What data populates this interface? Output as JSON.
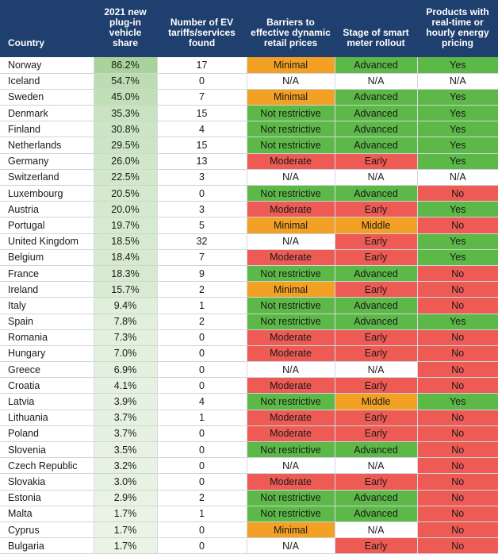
{
  "colors": {
    "header_bg": "#1f3f6e",
    "Minimal": "#f2a125",
    "Not restrictive": "#5cb947",
    "Moderate": "#ee5b55",
    "Advanced": "#5cb947",
    "Early": "#ee5b55",
    "Middle": "#f2a125",
    "Yes": "#5cb947",
    "No": "#ee5b55",
    "N/A": "#ffffff",
    "share_scale_high": "#a9d39b",
    "share_scale_low": "#eef6ea"
  },
  "chart_data": {
    "type": "table",
    "columns": [
      "Country",
      "2021 new plug-in vehicle share",
      "Number of EV tariffs/services found",
      "Barriers to effective dynamic retail prices",
      "Stage of smart meter rollout",
      "Products with real-time or hourly energy pricing"
    ],
    "rows": [
      {
        "country": "Norway",
        "share": "86.2%",
        "share_value": 86.2,
        "tariffs": "17",
        "barriers": "Minimal",
        "stage": "Advanced",
        "products": "Yes"
      },
      {
        "country": "Iceland",
        "share": "54.7%",
        "share_value": 54.7,
        "tariffs": "0",
        "barriers": "N/A",
        "stage": "N/A",
        "products": "N/A"
      },
      {
        "country": "Sweden",
        "share": "45.0%",
        "share_value": 45.0,
        "tariffs": "7",
        "barriers": "Minimal",
        "stage": "Advanced",
        "products": "Yes"
      },
      {
        "country": "Denmark",
        "share": "35.3%",
        "share_value": 35.3,
        "tariffs": "15",
        "barriers": "Not restrictive",
        "stage": "Advanced",
        "products": "Yes"
      },
      {
        "country": "Finland",
        "share": "30.8%",
        "share_value": 30.8,
        "tariffs": "4",
        "barriers": "Not restrictive",
        "stage": "Advanced",
        "products": "Yes"
      },
      {
        "country": "Netherlands",
        "share": "29.5%",
        "share_value": 29.5,
        "tariffs": "15",
        "barriers": "Not restrictive",
        "stage": "Advanced",
        "products": "Yes"
      },
      {
        "country": "Germany",
        "share": "26.0%",
        "share_value": 26.0,
        "tariffs": "13",
        "barriers": "Moderate",
        "stage": "Early",
        "products": "Yes"
      },
      {
        "country": "Switzerland",
        "share": "22.5%",
        "share_value": 22.5,
        "tariffs": "3",
        "barriers": "N/A",
        "stage": "N/A",
        "products": "N/A"
      },
      {
        "country": "Luxembourg",
        "share": "20.5%",
        "share_value": 20.5,
        "tariffs": "0",
        "barriers": "Not restrictive",
        "stage": "Advanced",
        "products": "No"
      },
      {
        "country": "Austria",
        "share": "20.0%",
        "share_value": 20.0,
        "tariffs": "3",
        "barriers": "Moderate",
        "stage": "Early",
        "products": "Yes"
      },
      {
        "country": "Portugal",
        "share": "19.7%",
        "share_value": 19.7,
        "tariffs": "5",
        "barriers": "Minimal",
        "stage": "Middle",
        "products": "No"
      },
      {
        "country": "United Kingdom",
        "share": "18.5%",
        "share_value": 18.5,
        "tariffs": "32",
        "barriers": "N/A",
        "stage": "Early",
        "products": "Yes"
      },
      {
        "country": "Belgium",
        "share": "18.4%",
        "share_value": 18.4,
        "tariffs": "7",
        "barriers": "Moderate",
        "stage": "Early",
        "products": "Yes"
      },
      {
        "country": "France",
        "share": "18.3%",
        "share_value": 18.3,
        "tariffs": "9",
        "barriers": "Not restrictive",
        "stage": "Advanced",
        "products": "No"
      },
      {
        "country": "Ireland",
        "share": "15.7%",
        "share_value": 15.7,
        "tariffs": "2",
        "barriers": "Minimal",
        "stage": "Early",
        "products": "No"
      },
      {
        "country": "Italy",
        "share": "9.4%",
        "share_value": 9.4,
        "tariffs": "1",
        "barriers": "Not restrictive",
        "stage": "Advanced",
        "products": "No"
      },
      {
        "country": "Spain",
        "share": "7.8%",
        "share_value": 7.8,
        "tariffs": "2",
        "barriers": "Not restrictive",
        "stage": "Advanced",
        "products": "Yes"
      },
      {
        "country": "Romania",
        "share": "7.3%",
        "share_value": 7.3,
        "tariffs": "0",
        "barriers": "Moderate",
        "stage": "Early",
        "products": "No"
      },
      {
        "country": "Hungary",
        "share": "7.0%",
        "share_value": 7.0,
        "tariffs": "0",
        "barriers": "Moderate",
        "stage": "Early",
        "products": "No"
      },
      {
        "country": "Greece",
        "share": "6.9%",
        "share_value": 6.9,
        "tariffs": "0",
        "barriers": "N/A",
        "stage": "N/A",
        "products": "No"
      },
      {
        "country": "Croatia",
        "share": "4.1%",
        "share_value": 4.1,
        "tariffs": "0",
        "barriers": "Moderate",
        "stage": "Early",
        "products": "No"
      },
      {
        "country": "Latvia",
        "share": "3.9%",
        "share_value": 3.9,
        "tariffs": "4",
        "barriers": "Not restrictive",
        "stage": "Middle",
        "products": "Yes"
      },
      {
        "country": "Lithuania",
        "share": "3.7%",
        "share_value": 3.7,
        "tariffs": "1",
        "barriers": "Moderate",
        "stage": "Early",
        "products": "No"
      },
      {
        "country": "Poland",
        "share": "3.7%",
        "share_value": 3.7,
        "tariffs": "0",
        "barriers": "Moderate",
        "stage": "Early",
        "products": "No"
      },
      {
        "country": "Slovenia",
        "share": "3.5%",
        "share_value": 3.5,
        "tariffs": "0",
        "barriers": "Not restrictive",
        "stage": "Advanced",
        "products": "No"
      },
      {
        "country": "Czech Republic",
        "share": "3.2%",
        "share_value": 3.2,
        "tariffs": "0",
        "barriers": "N/A",
        "stage": "N/A",
        "products": "No"
      },
      {
        "country": "Slovakia",
        "share": "3.0%",
        "share_value": 3.0,
        "tariffs": "0",
        "barriers": "Moderate",
        "stage": "Early",
        "products": "No"
      },
      {
        "country": "Estonia",
        "share": "2.9%",
        "share_value": 2.9,
        "tariffs": "2",
        "barriers": "Not restrictive",
        "stage": "Advanced",
        "products": "No"
      },
      {
        "country": "Malta",
        "share": "1.7%",
        "share_value": 1.7,
        "tariffs": "1",
        "barriers": "Not restrictive",
        "stage": "Advanced",
        "products": "No"
      },
      {
        "country": "Cyprus",
        "share": "1.7%",
        "share_value": 1.7,
        "tariffs": "0",
        "barriers": "Minimal",
        "stage": "N/A",
        "products": "No"
      },
      {
        "country": "Bulgaria",
        "share": "1.7%",
        "share_value": 1.7,
        "tariffs": "0",
        "barriers": "N/A",
        "stage": "Early",
        "products": "No"
      }
    ]
  }
}
